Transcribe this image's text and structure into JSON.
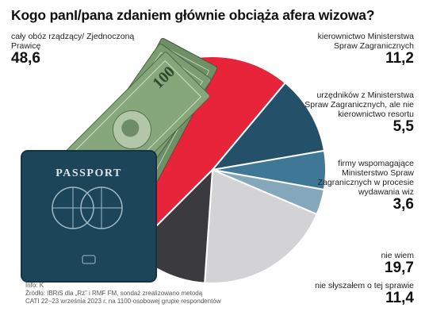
{
  "title": "Kogo panI/pana zdaniem głównie obciąża afera wizowa?",
  "footer": {
    "info": "Info: K",
    "source": "Źródło: IBRiS dla „Rz” i RMF FM, sondaż zrealizowano metodą",
    "method": "CATI 22–23 września 2023 r. na 1100-osobowej grupie respondentów"
  },
  "passport_text": "PASSPORT",
  "chart_data": {
    "type": "pie",
    "title": "Kogo panI/pana zdaniem głównie obciąża afera wizowa?",
    "slices": [
      {
        "label": "cały obóz rządzący/ Zjednoczoną Prawicę",
        "value": 48.6,
        "value_text": "48,6",
        "color": "#e8243a"
      },
      {
        "label": "kierownictwo Ministerstwa Spraw Zagranicznych",
        "value": 11.2,
        "value_text": "11,2",
        "color": "#24506a"
      },
      {
        "label": "urzędników z Ministerstwa Spraw Zagranicznych, ale nie kierownictwo resortu",
        "value": 5.5,
        "value_text": "5,5",
        "color": "#3f7897"
      },
      {
        "label": "firmy wspomagające Ministerstwo Spraw Zagranicznych w procesie wydawania wiz",
        "value": 3.6,
        "value_text": "3,6",
        "color": "#85a7bc"
      },
      {
        "label": "nie wiem",
        "value": 19.7,
        "value_text": "19,7",
        "color": "#d3d3d5"
      },
      {
        "label": "nie słyszałem o tej sprawie",
        "value": 11.4,
        "value_text": "11,4",
        "color": "#3a3a3f"
      }
    ]
  }
}
